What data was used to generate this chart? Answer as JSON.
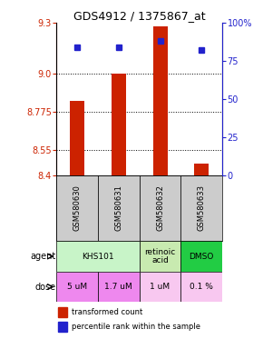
{
  "title": "GDS4912 / 1375867_at",
  "samples": [
    "GSM580630",
    "GSM580631",
    "GSM580632",
    "GSM580633"
  ],
  "bar_values": [
    8.84,
    9.0,
    9.28,
    8.47
  ],
  "percentile_values": [
    84,
    84,
    88,
    82
  ],
  "ylim_left": [
    8.4,
    9.3
  ],
  "ylim_right": [
    0,
    100
  ],
  "left_ticks": [
    8.4,
    8.55,
    8.775,
    9.0,
    9.3
  ],
  "right_ticks": [
    0,
    25,
    50,
    75,
    100
  ],
  "right_tick_labels": [
    "0",
    "25",
    "50",
    "75",
    "100%"
  ],
  "bar_color": "#cc2200",
  "dot_color": "#2222cc",
  "bar_width": 0.35,
  "agent_groups": [
    {
      "c0": 0,
      "c1": 1,
      "label": "KHS101",
      "color": "#c8f4c8"
    },
    {
      "c0": 2,
      "c1": 2,
      "label": "retinoic\nacid",
      "color": "#c8eab0"
    },
    {
      "c0": 3,
      "c1": 3,
      "label": "DMSO",
      "color": "#22cc44"
    }
  ],
  "doses": [
    "5 uM",
    "1.7 uM",
    "1 uM",
    "0.1 %"
  ],
  "dose_colors": [
    "#ee88ee",
    "#ee88ee",
    "#f8c8f0",
    "#f8c8f0"
  ],
  "sample_bg": "#cccccc",
  "legend_bar_color": "#cc2200",
  "legend_dot_color": "#2222cc",
  "background_color": "#ffffff"
}
